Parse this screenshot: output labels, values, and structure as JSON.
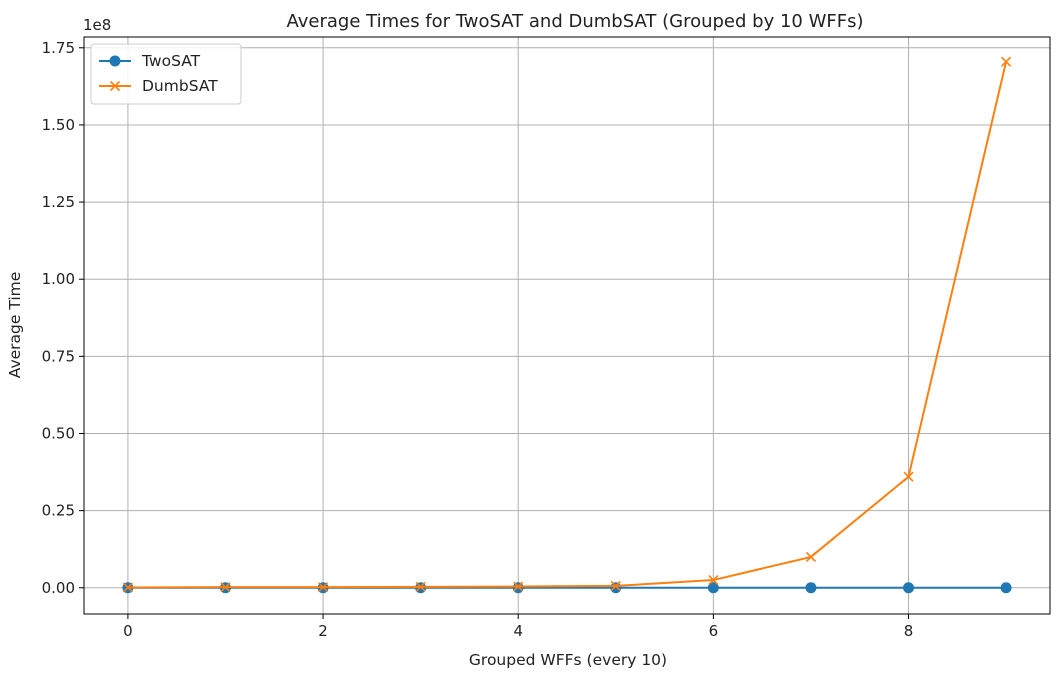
{
  "chart_data": {
    "type": "line",
    "title": "Average Times for TwoSAT and DumbSAT (Grouped by 10 WFFs)",
    "xlabel": "Grouped WFFs (every 10)",
    "ylabel": "Average Time",
    "y_offset_label": "1e8",
    "xlim": [
      -0.45,
      9.45
    ],
    "ylim": [
      -0.085,
      1.785
    ],
    "y_scale_multiplier": 100000000,
    "x_ticks": [
      0,
      2,
      4,
      6,
      8
    ],
    "x_tick_labels": [
      "0",
      "2",
      "4",
      "6",
      "8"
    ],
    "y_ticks": [
      0.0,
      0.25,
      0.5,
      0.75,
      1.0,
      1.25,
      1.5,
      1.75
    ],
    "y_tick_labels": [
      "0.00",
      "0.25",
      "0.50",
      "0.75",
      "1.00",
      "1.25",
      "1.50",
      "1.75"
    ],
    "grid": true,
    "legend_position": "top-left",
    "x": [
      0,
      1,
      2,
      3,
      4,
      5,
      6,
      7,
      8,
      9
    ],
    "series": [
      {
        "name": "TwoSAT",
        "marker": "circle",
        "color": "#1f77b4",
        "values": [
          0.0,
          0.0,
          0.0,
          0.0,
          0.0,
          0.0,
          0.0,
          0.0,
          0.0,
          0.0
        ]
      },
      {
        "name": "DumbSAT",
        "marker": "x",
        "color": "#ff7f0e",
        "values": [
          0.001,
          0.002,
          0.002,
          0.003,
          0.004,
          0.006,
          0.025,
          0.1,
          0.36,
          1.705
        ]
      }
    ]
  }
}
